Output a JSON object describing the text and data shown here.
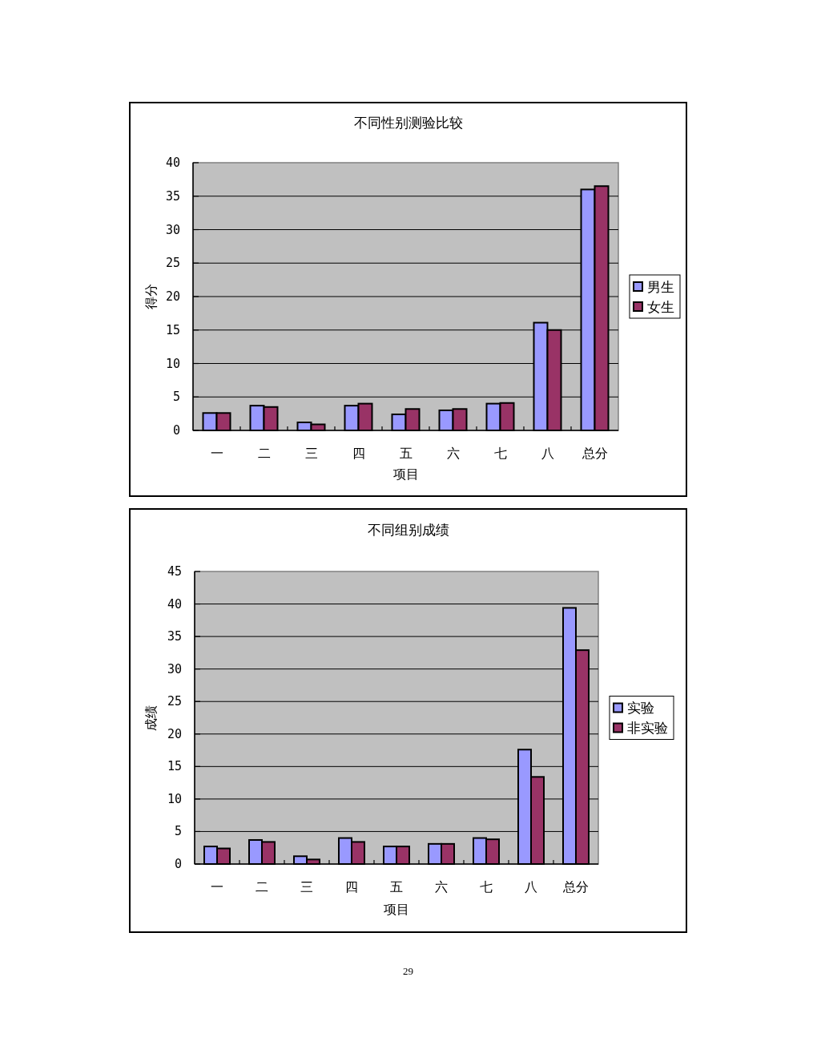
{
  "chart_data": [
    {
      "type": "bar",
      "title": "不同性别测验比较",
      "xlabel": "项目",
      "ylabel": "得分",
      "categories": [
        "一",
        "二",
        "三",
        "四",
        "五",
        "六",
        "七",
        "八",
        "总分"
      ],
      "series": [
        {
          "name": "男生",
          "color": "#9999ff",
          "values": [
            2.6,
            3.7,
            1.2,
            3.7,
            2.4,
            3.0,
            4.0,
            16.1,
            36.0
          ]
        },
        {
          "name": "女生",
          "color": "#993366",
          "values": [
            2.6,
            3.5,
            0.9,
            4.0,
            3.2,
            3.2,
            4.1,
            15.0,
            36.5
          ]
        }
      ],
      "ylim": [
        0,
        40
      ],
      "yticks": [
        0,
        5,
        10,
        15,
        20,
        25,
        30,
        35,
        40
      ],
      "grid": "y",
      "legend": "right"
    },
    {
      "type": "bar",
      "title": "不同组别成绩",
      "xlabel": "项目",
      "ylabel": "成绩",
      "categories": [
        "一",
        "二",
        "三",
        "四",
        "五",
        "六",
        "七",
        "八",
        "总分"
      ],
      "series": [
        {
          "name": "实验",
          "color": "#9999ff",
          "values": [
            2.7,
            3.7,
            1.2,
            4.0,
            2.7,
            3.1,
            4.0,
            17.6,
            39.4
          ]
        },
        {
          "name": "非实验",
          "color": "#993366",
          "values": [
            2.4,
            3.4,
            0.7,
            3.4,
            2.7,
            3.1,
            3.8,
            13.4,
            32.9
          ]
        }
      ],
      "ylim": [
        0,
        45
      ],
      "yticks": [
        0,
        5,
        10,
        15,
        20,
        25,
        30,
        35,
        40,
        45
      ],
      "grid": "y",
      "legend": "right",
      "annotations": [
        "29"
      ]
    }
  ]
}
